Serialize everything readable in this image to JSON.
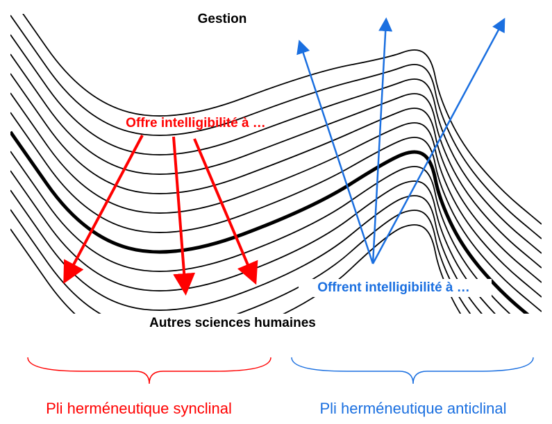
{
  "top_label": "Gestion",
  "red_annotation": "Offre intelligibilité à …",
  "blue_annotation": "Offrent intelligibilité à …",
  "bottom_label": "Autres sciences humaines",
  "left_caption": "Pli herméneutique synclinal",
  "right_caption": "Pli herméneutique anticlinal"
}
